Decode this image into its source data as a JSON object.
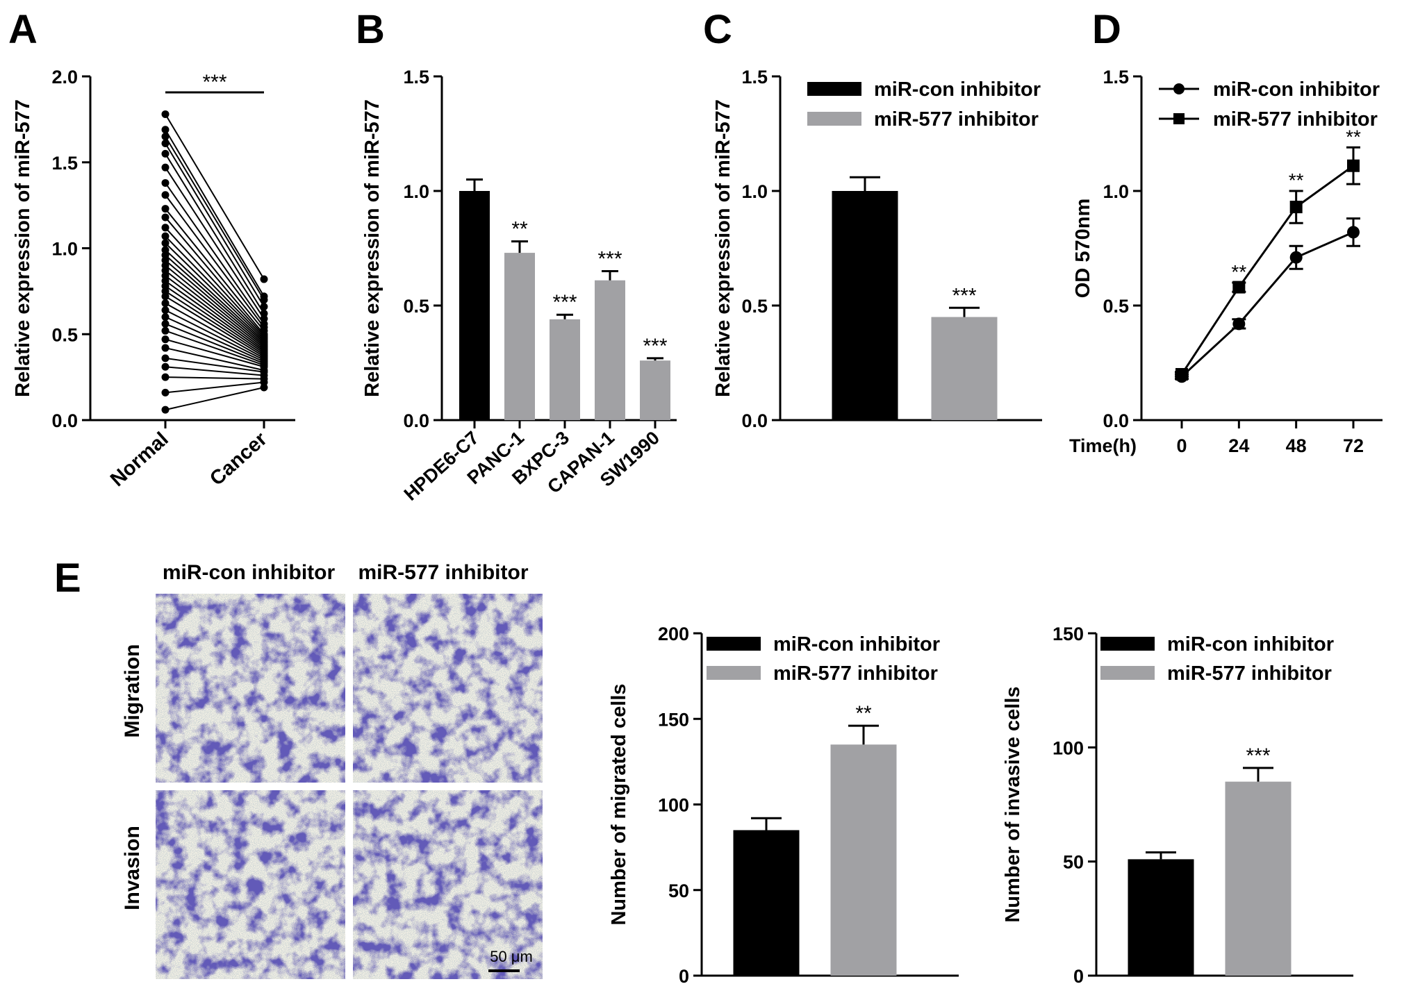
{
  "panel_labels": [
    "A",
    "B",
    "C",
    "D",
    "E"
  ],
  "colors": {
    "black_bar": "#000000",
    "gray_bar": "#a1a1a4",
    "line": "#000000",
    "cell_stain": "#1e1a78"
  },
  "chart_data": [
    {
      "panel": "A",
      "type": "paired-scatter",
      "ylabel": "Relative expression of miR-577",
      "ylim": [
        0,
        2.0
      ],
      "yticks": [
        "0.0",
        "0.5",
        "1.0",
        "1.5",
        "2.0"
      ],
      "categories": [
        "Normal",
        "Cancer"
      ],
      "significance": "***",
      "pairs": [
        [
          1.78,
          0.82
        ],
        [
          1.69,
          0.72
        ],
        [
          1.65,
          0.7
        ],
        [
          1.61,
          0.66
        ],
        [
          1.55,
          0.62
        ],
        [
          1.47,
          0.59
        ],
        [
          1.38,
          0.56
        ],
        [
          1.31,
          0.54
        ],
        [
          1.23,
          0.52
        ],
        [
          1.18,
          0.5
        ],
        [
          1.12,
          0.49
        ],
        [
          1.07,
          0.48
        ],
        [
          1.03,
          0.47
        ],
        [
          0.99,
          0.46
        ],
        [
          0.96,
          0.45
        ],
        [
          0.93,
          0.44
        ],
        [
          0.9,
          0.43
        ],
        [
          0.87,
          0.42
        ],
        [
          0.84,
          0.41
        ],
        [
          0.81,
          0.4
        ],
        [
          0.78,
          0.39
        ],
        [
          0.75,
          0.38
        ],
        [
          0.72,
          0.37
        ],
        [
          0.68,
          0.36
        ],
        [
          0.64,
          0.35
        ],
        [
          0.6,
          0.34
        ],
        [
          0.56,
          0.33
        ],
        [
          0.52,
          0.32
        ],
        [
          0.47,
          0.31
        ],
        [
          0.42,
          0.29
        ],
        [
          0.36,
          0.28
        ],
        [
          0.31,
          0.26
        ],
        [
          0.25,
          0.24
        ],
        [
          0.16,
          0.22
        ],
        [
          0.06,
          0.19
        ]
      ]
    },
    {
      "panel": "B",
      "type": "bar",
      "ylabel": "Relative expression of miR-577",
      "ylim": [
        0,
        1.5
      ],
      "yticks": [
        "0.0",
        "0.5",
        "1.0",
        "1.5"
      ],
      "categories": [
        "HPDE6-C7",
        "PANC-1",
        "BXPC-3",
        "CAPAN-1",
        "SW1990"
      ],
      "values": [
        1.0,
        0.73,
        0.44,
        0.61,
        0.26
      ],
      "errors": [
        0.05,
        0.05,
        0.02,
        0.04,
        0.01
      ],
      "bar_colors": [
        "black",
        "gray",
        "gray",
        "gray",
        "gray"
      ],
      "significance": [
        "",
        "**",
        "***",
        "***",
        "***"
      ]
    },
    {
      "panel": "C",
      "type": "bar",
      "ylabel": "Relative expression of miR-577",
      "ylim": [
        0,
        1.5
      ],
      "yticks": [
        "0.0",
        "0.5",
        "1.0",
        "1.5"
      ],
      "series": [
        {
          "name": "miR-con inhibitor",
          "value": 1.0,
          "error": 0.06,
          "color": "black",
          "sig": ""
        },
        {
          "name": "miR-577 inhibitor",
          "value": 0.45,
          "error": 0.04,
          "color": "gray",
          "sig": "***"
        }
      ],
      "legend": "top-right"
    },
    {
      "panel": "D",
      "type": "line",
      "ylabel": "OD 570nm",
      "xlabel": "Time(h)",
      "ylim": [
        0,
        1.5
      ],
      "yticks": [
        "0.0",
        "0.5",
        "1.0",
        "1.5"
      ],
      "x": [
        0,
        24,
        48,
        72
      ],
      "xticks": [
        "0",
        "24",
        "48",
        "72"
      ],
      "series": [
        {
          "name": "miR-con inhibitor",
          "marker": "circle",
          "values": [
            0.19,
            0.42,
            0.71,
            0.82
          ],
          "errors": [
            0.01,
            0.02,
            0.05,
            0.06
          ]
        },
        {
          "name": "miR-577 inhibitor",
          "marker": "square",
          "values": [
            0.2,
            0.58,
            0.93,
            1.11
          ],
          "errors": [
            0.01,
            0.02,
            0.07,
            0.08
          ]
        }
      ],
      "significance": [
        "",
        "**",
        "**",
        "**"
      ],
      "legend": "top-left"
    },
    {
      "panel": "E-migration",
      "type": "bar",
      "ylabel": "Number of migrated cells",
      "ylim": [
        0,
        200
      ],
      "yticks": [
        "0",
        "50",
        "100",
        "150",
        "200"
      ],
      "series": [
        {
          "name": "miR-con inhibitor",
          "value": 85,
          "error": 7,
          "color": "black",
          "sig": ""
        },
        {
          "name": "miR-577 inhibitor",
          "value": 135,
          "error": 11,
          "color": "gray",
          "sig": "**"
        }
      ],
      "legend": "top-left"
    },
    {
      "panel": "E-invasion",
      "type": "bar",
      "ylabel": "Number of invasive cells",
      "ylim": [
        0,
        150
      ],
      "yticks": [
        "0",
        "50",
        "100",
        "150"
      ],
      "series": [
        {
          "name": "miR-con inhibitor",
          "value": 51,
          "error": 3,
          "color": "black",
          "sig": ""
        },
        {
          "name": "miR-577 inhibitor",
          "value": 85,
          "error": 6,
          "color": "gray",
          "sig": "***"
        }
      ],
      "legend": "top-left"
    }
  ],
  "micrographs": {
    "column_titles": [
      "miR-con inhibitor",
      "miR-577 inhibitor"
    ],
    "row_labels": [
      "Migration",
      "Invasion"
    ],
    "scale_bar": "50 μm"
  }
}
